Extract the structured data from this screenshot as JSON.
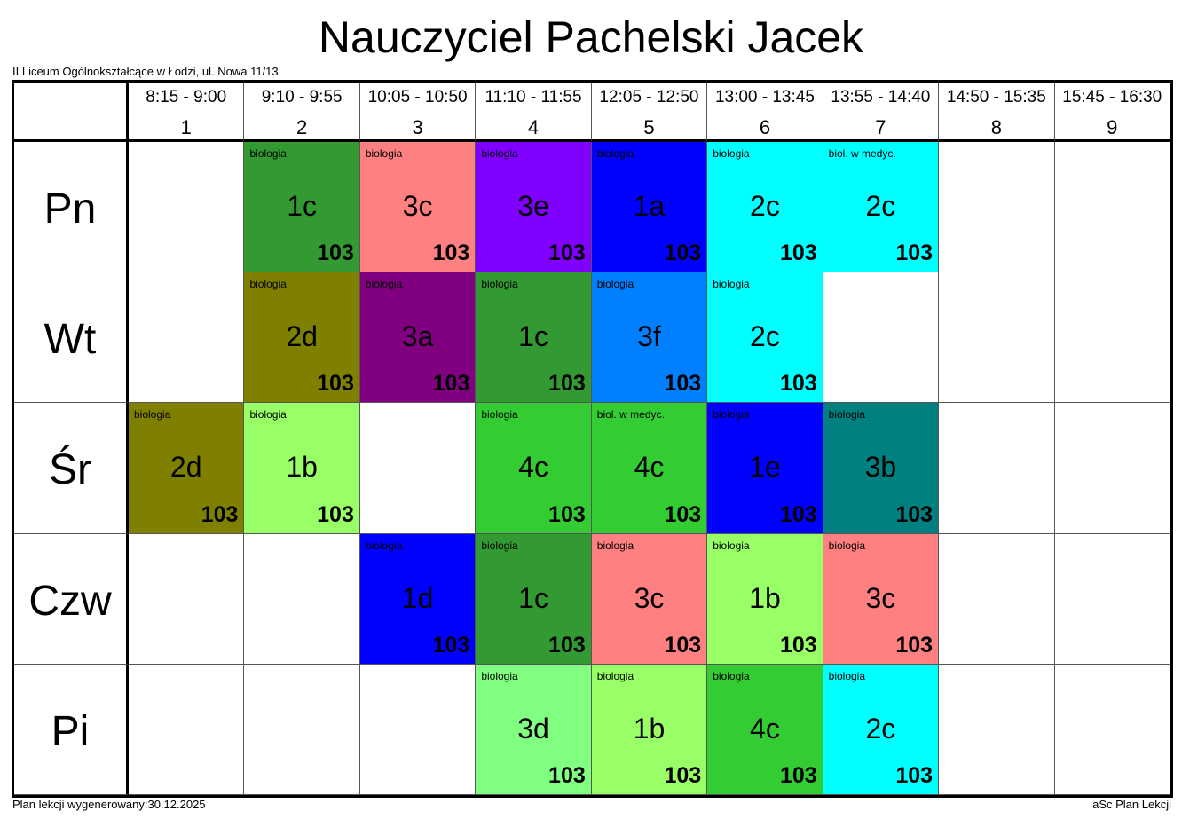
{
  "header": {
    "title": "Nauczyciel Pachelski Jacek",
    "school": "II Liceum Ogólnokształcące w Łodzi, ul. Nowa 11/13"
  },
  "table": {
    "periods": [
      {
        "time": "8:15 - 9:00",
        "number": "1"
      },
      {
        "time": "9:10 - 9:55",
        "number": "2"
      },
      {
        "time": "10:05 - 10:50",
        "number": "3"
      },
      {
        "time": "11:10 - 11:55",
        "number": "4"
      },
      {
        "time": "12:05 - 12:50",
        "number": "5"
      },
      {
        "time": "13:00 - 13:45",
        "number": "6"
      },
      {
        "time": "13:55 - 14:40",
        "number": "7"
      },
      {
        "time": "14:50 - 15:35",
        "number": "8"
      },
      {
        "time": "15:45 - 16:30",
        "number": "9"
      }
    ],
    "days": [
      {
        "name": "Pn",
        "cells": [
          null,
          {
            "subject": "biologia",
            "class": "1c",
            "room": "103",
            "color": "#339933"
          },
          {
            "subject": "biologia",
            "class": "3c",
            "room": "103",
            "color": "#ff8080"
          },
          {
            "subject": "biologia",
            "class": "3e",
            "room": "103",
            "color": "#8000ff"
          },
          {
            "subject": "biologia",
            "class": "1a",
            "room": "103",
            "color": "#0000ff"
          },
          {
            "subject": "biologia",
            "class": "2c",
            "room": "103",
            "color": "#00ffff"
          },
          {
            "subject": "biol. w medyc.",
            "class": "2c",
            "room": "103",
            "color": "#00ffff"
          },
          null,
          null
        ]
      },
      {
        "name": "Wt",
        "cells": [
          null,
          {
            "subject": "biologia",
            "class": "2d",
            "room": "103",
            "color": "#808000"
          },
          {
            "subject": "biologia",
            "class": "3a",
            "room": "103",
            "color": "#800080"
          },
          {
            "subject": "biologia",
            "class": "1c",
            "room": "103",
            "color": "#339933"
          },
          {
            "subject": "biologia",
            "class": "3f",
            "room": "103",
            "color": "#0080ff"
          },
          {
            "subject": "biologia",
            "class": "2c",
            "room": "103",
            "color": "#00ffff"
          },
          null,
          null,
          null
        ]
      },
      {
        "name": "Śr",
        "cells": [
          {
            "subject": "biologia",
            "class": "2d",
            "room": "103",
            "color": "#808000"
          },
          {
            "subject": "biologia",
            "class": "1b",
            "room": "103",
            "color": "#99ff66"
          },
          null,
          {
            "subject": "biologia",
            "class": "4c",
            "room": "103",
            "color": "#33cc33"
          },
          {
            "subject": "biol. w medyc.",
            "class": "4c",
            "room": "103",
            "color": "#33cc33"
          },
          {
            "subject": "biologia",
            "class": "1e",
            "room": "103",
            "color": "#0000ff"
          },
          {
            "subject": "biologia",
            "class": "3b",
            "room": "103",
            "color": "#008080"
          },
          null,
          null
        ]
      },
      {
        "name": "Czw",
        "cells": [
          null,
          null,
          {
            "subject": "biologia",
            "class": "1d",
            "room": "103",
            "color": "#0000ff"
          },
          {
            "subject": "biologia",
            "class": "1c",
            "room": "103",
            "color": "#339933"
          },
          {
            "subject": "biologia",
            "class": "3c",
            "room": "103",
            "color": "#ff8080"
          },
          {
            "subject": "biologia",
            "class": "1b",
            "room": "103",
            "color": "#99ff66"
          },
          {
            "subject": "biologia",
            "class": "3c",
            "room": "103",
            "color": "#ff8080"
          },
          null,
          null
        ]
      },
      {
        "name": "Pi",
        "cells": [
          null,
          null,
          null,
          {
            "subject": "biologia",
            "class": "3d",
            "room": "103",
            "color": "#80ff80"
          },
          {
            "subject": "biologia",
            "class": "1b",
            "room": "103",
            "color": "#99ff66"
          },
          {
            "subject": "biologia",
            "class": "4c",
            "room": "103",
            "color": "#33cc33"
          },
          {
            "subject": "biologia",
            "class": "2c",
            "room": "103",
            "color": "#00ffff"
          },
          null,
          null
        ]
      }
    ]
  },
  "footer": {
    "generated": "Plan lekcji wygenerowany:30.12.2025",
    "software": "aSc Plan Lekcji"
  }
}
